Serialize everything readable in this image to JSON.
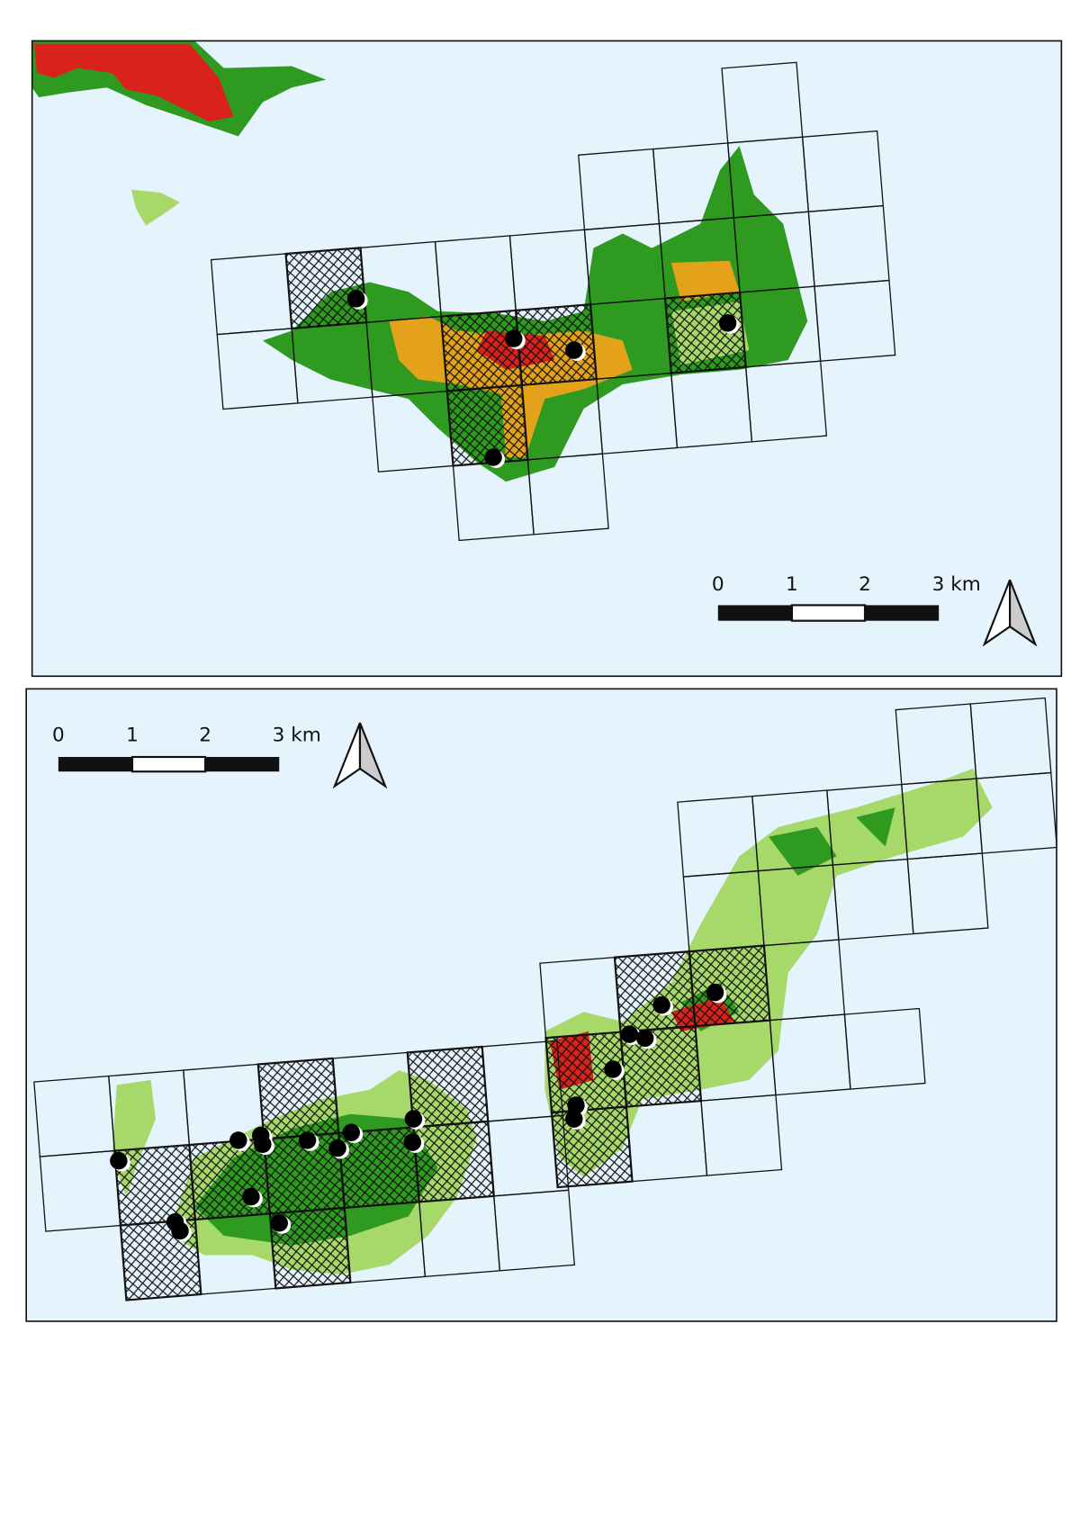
{
  "maps": [
    {
      "scale_labels": [
        "0",
        "1",
        "2",
        "3 km"
      ]
    },
    {
      "scale_labels": [
        "0",
        "1",
        "2",
        "3 km"
      ]
    }
  ]
}
